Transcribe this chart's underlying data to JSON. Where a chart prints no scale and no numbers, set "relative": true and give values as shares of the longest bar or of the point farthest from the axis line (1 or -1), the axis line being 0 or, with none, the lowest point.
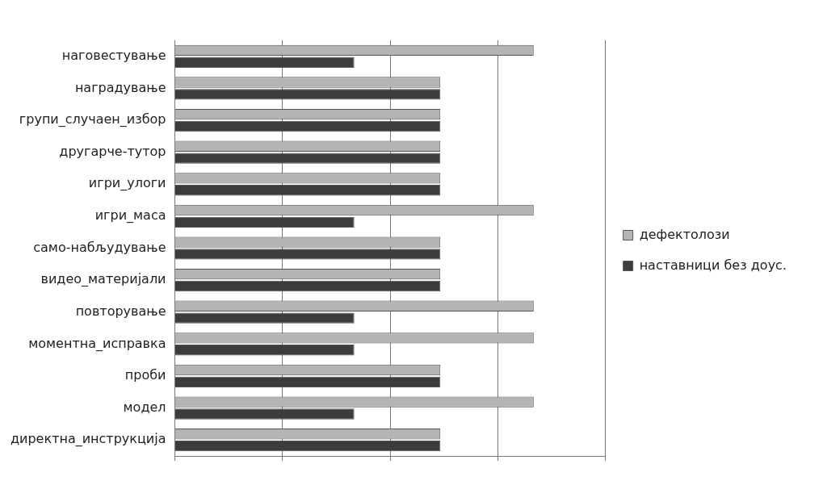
{
  "chart_data": {
    "type": "bar",
    "orientation": "horizontal",
    "relative": true,
    "grid": "x",
    "legend": "right",
    "categories": [
      "наговестување",
      "наградување",
      "групи_случаен_избор",
      "другарче-тутор",
      "игри_улоги",
      "игри_маса",
      "само-набљудување",
      "видео_материјали",
      "повторување",
      "моментна_исправка",
      "проби",
      "модел",
      "директна_инструкција"
    ],
    "series": [
      {
        "name": "дефектолози",
        "color": "#b4b4b4",
        "values": [
          1,
          0.74,
          0.74,
          0.74,
          0.74,
          1,
          0.74,
          0.74,
          1,
          1,
          0.74,
          1,
          0.74
        ]
      },
      {
        "name": "наставници без доус.",
        "color": "#3c3c3c",
        "values": [
          0.5,
          0.74,
          0.74,
          0.74,
          0.74,
          0.5,
          0.74,
          0.74,
          0.5,
          0.5,
          0.74,
          0.5,
          0.74
        ]
      }
    ]
  }
}
